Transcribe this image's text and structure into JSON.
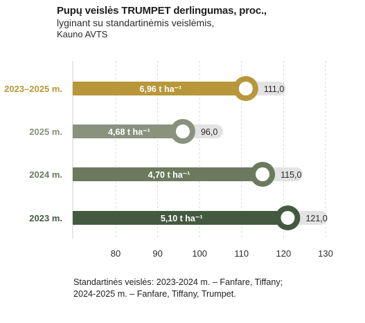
{
  "header": {
    "title": "Pupų veislės TRUMPET derlingumas, proc.,",
    "subtitle": "lyginant su standartinėmis veislėmis,",
    "location": "Kauno AVTS"
  },
  "chart_data": {
    "type": "bar",
    "orientation": "horizontal",
    "categories": [
      "2023–2025 m.",
      "2025 m.",
      "2024 m.",
      "2023 m."
    ],
    "values": [
      111.0,
      96.0,
      115.0,
      121.0
    ],
    "value_labels": [
      "111,0",
      "96,0",
      "115,0",
      "121,0"
    ],
    "bar_labels": [
      "6,96 t ha⁻¹",
      "4,68 t ha⁻¹",
      "4,70 t ha⁻¹",
      "5,10 t ha⁻¹"
    ],
    "colors": [
      "#b8963a",
      "#8a917d",
      "#6b7a5e",
      "#445a40"
    ],
    "track_color": "#e3e3e3",
    "xlim": [
      70,
      130
    ],
    "xticks": [
      80,
      90,
      100,
      110,
      120,
      130
    ],
    "grid": true
  },
  "footnote": {
    "line1": "Standartinės veislės: 2023-2024 m. – Fanfare, Tiffany;",
    "line2": "2024-2025 m. – Fanfare, Tiffany, Trumpet."
  }
}
